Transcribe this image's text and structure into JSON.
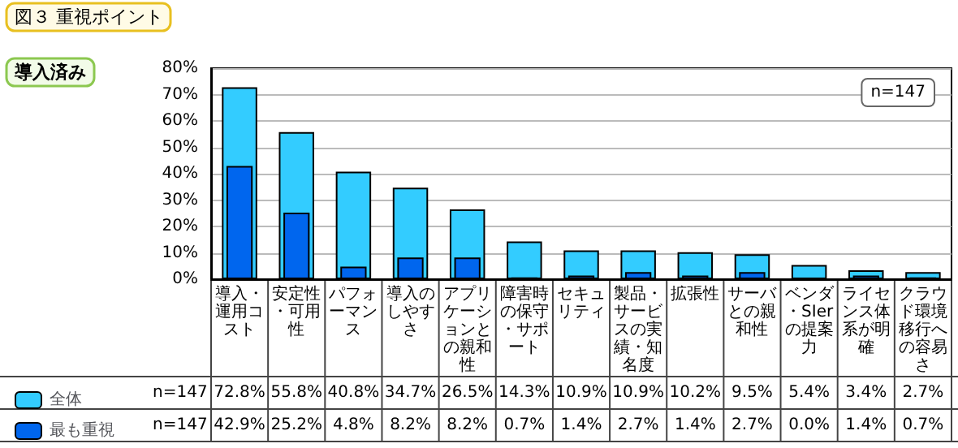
{
  "chart_data": {
    "type": "bar",
    "title": "図３ 重視ポイント",
    "subtitle": "導入済み",
    "categories": [
      "導入・運用コスト",
      "安定性・可用性",
      "パフォーマンス",
      "導入のしやすさ",
      "アプリケーションとの親和性",
      "障害時の保守・サポート",
      "セキュリティ",
      "製品・サービスの実績・知名度",
      "拡張性",
      "サーバとの親和性",
      "ベンダ・SIerの提案力",
      "ライセンス体系が明確",
      "クラウド環境移行への容易さ"
    ],
    "series": [
      {
        "name": "全体",
        "color": "#33ccff",
        "values": [
          72.8,
          55.8,
          40.8,
          34.7,
          26.5,
          14.3,
          10.9,
          10.9,
          10.2,
          9.5,
          5.4,
          3.4,
          2.7
        ],
        "value_labels": [
          "72.8%",
          "55.8%",
          "40.8%",
          "34.7%",
          "26.5%",
          "14.3%",
          "10.9%",
          "10.9%",
          "10.2%",
          "9.5%",
          "5.4%",
          "3.4%",
          "2.7%"
        ]
      },
      {
        "name": "最も重視",
        "color": "#0066ee",
        "values": [
          42.9,
          25.2,
          4.8,
          8.2,
          8.2,
          0.7,
          1.4,
          2.7,
          1.4,
          2.7,
          0.0,
          1.4,
          0.7
        ],
        "value_labels": [
          "42.9%",
          "25.2%",
          "4.8%",
          "8.2%",
          "8.2%",
          "0.7%",
          "1.4%",
          "2.7%",
          "1.4%",
          "2.7%",
          "0.0%",
          "1.4%",
          "0.7%"
        ]
      }
    ],
    "ylim": [
      0,
      80
    ],
    "yticks": [
      {
        "value": 0,
        "label": "0%"
      },
      {
        "value": 10,
        "label": "10%"
      },
      {
        "value": 20,
        "label": "20%"
      },
      {
        "value": 30,
        "label": "30%"
      },
      {
        "value": 40,
        "label": "40%"
      },
      {
        "value": 50,
        "label": "50%"
      },
      {
        "value": 60,
        "label": "60%"
      },
      {
        "value": 70,
        "label": "70%"
      },
      {
        "value": 80,
        "label": "80%"
      }
    ],
    "grid": "y",
    "legend": "bottom left",
    "annotations": [
      "n=147"
    ]
  }
}
